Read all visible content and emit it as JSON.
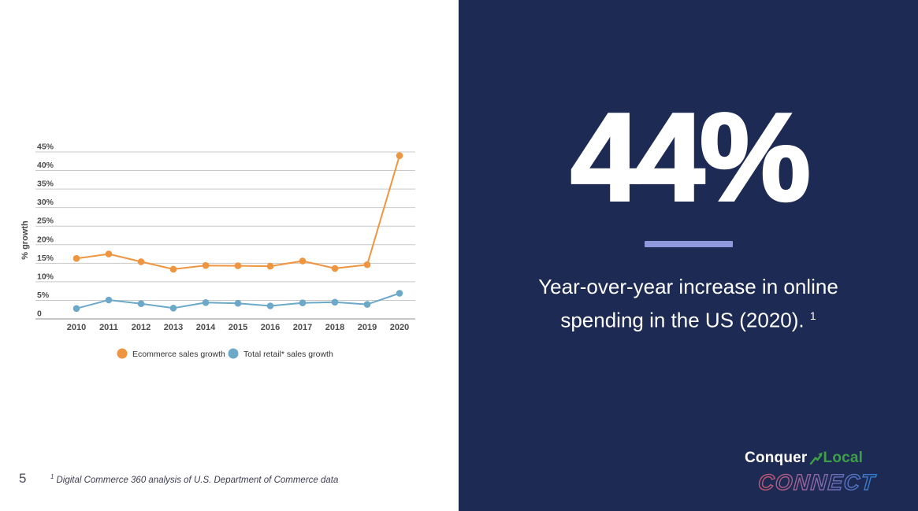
{
  "slide": {
    "page_number": "5",
    "footnote": {
      "sup": "1",
      "text": "Digital Commerce 360 analysis of U.S. Department of Commerce data"
    }
  },
  "stat_panel": {
    "background_color": "#1d2a53",
    "stat_value": "44%",
    "divider_color": "#8f99de",
    "caption_text": "Year-over-year increase in online spending in the US (2020).",
    "caption_sup": "1",
    "logo": {
      "brand_part1": "Conquer",
      "brand_part2": "Local",
      "brand_green": "#3da047",
      "growth_arrow_icon": "growth-arrow",
      "connect": "CONNECT",
      "connect_gradient": [
        "#c9566b",
        "#8a67a8",
        "#2e7ed4"
      ]
    }
  },
  "chart_data": {
    "type": "line",
    "x": [
      2010,
      2011,
      2012,
      2013,
      2014,
      2015,
      2016,
      2017,
      2018,
      2019,
      2020
    ],
    "series": [
      {
        "name": "Ecommerce sales growth",
        "color": "#ef9540",
        "values": [
          16.3,
          17.5,
          15.4,
          13.4,
          14.4,
          14.3,
          14.2,
          15.6,
          13.6,
          14.6,
          44.0
        ]
      },
      {
        "name": "Total retail* sales growth",
        "color": "#6ca9c9",
        "values": [
          2.8,
          5.1,
          4.1,
          2.9,
          4.4,
          4.2,
          3.5,
          4.3,
          4.5,
          3.9,
          6.9
        ]
      }
    ],
    "title": "",
    "xlabel": "",
    "ylabel": "% growth",
    "ylim": [
      0,
      45
    ],
    "ytick_step": 5,
    "ytick_labels": [
      "45%",
      "40%",
      "35%",
      "30%",
      "25%",
      "20%",
      "15%",
      "10%",
      "5%",
      "0"
    ],
    "grid": true,
    "gridline_color": "#c9c9c9",
    "axis_text_color": "#4a4a4a",
    "legend_position": "bottom"
  }
}
